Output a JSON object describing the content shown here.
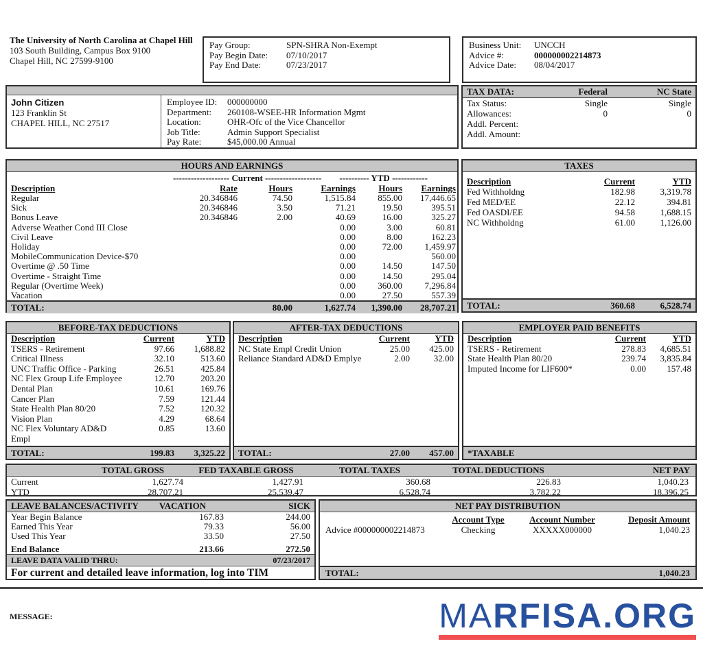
{
  "employer": {
    "name": "The University of North Carolina at Chapel Hill",
    "address1": "103 South Building, Campus Box 9100",
    "address2": "Chapel Hill, NC  27599-9100"
  },
  "pay_info": {
    "pay_group_label": "Pay Group:",
    "pay_group": "SPN-SHRA Non-Exempt",
    "pay_begin_label": "Pay Begin Date:",
    "pay_begin": "07/10/2017",
    "pay_end_label": "Pay End Date:",
    "pay_end": "07/23/2017"
  },
  "advice_info": {
    "business_unit_label": "Business Unit:",
    "business_unit": "UNCCH",
    "advice_no_label": "Advice #:",
    "advice_no": "000000002214873",
    "advice_date_label": "Advice Date:",
    "advice_date": "08/04/2017"
  },
  "employee": {
    "name": "John Citizen",
    "address1": "123 Franklin St",
    "address2": "CHAPEL HILL, NC  27517",
    "fields": [
      {
        "label": "Employee ID:",
        "value": "000000000"
      },
      {
        "label": "Department:",
        "value": "260108-WSEE-HR Information Mgmt"
      },
      {
        "label": "Location:",
        "value": "OHR-Ofc of the Vice Chancellor"
      },
      {
        "label": "Job Title:",
        "value": "Admin Support Specialist"
      },
      {
        "label": "Pay Rate:",
        "value": "$45,000.00 Annual"
      }
    ]
  },
  "tax_data": {
    "title": "TAX DATA:",
    "col_federal": "Federal",
    "col_state": "NC State",
    "rows": [
      {
        "label": "Tax Status:",
        "federal": "Single",
        "state": "Single"
      },
      {
        "label": "Allowances:",
        "federal": "0",
        "state": "0"
      },
      {
        "label": "Addl. Percent:",
        "federal": "",
        "state": ""
      },
      {
        "label": "Addl. Amount:",
        "federal": "",
        "state": ""
      }
    ]
  },
  "hours_earnings": {
    "title": "HOURS AND EARNINGS",
    "dash_a": "-------------------",
    "current_label": " Current ",
    "dash_b": "-------------------",
    "dash_c": "----------",
    "ytd_label": " YTD ",
    "dash_d": "------------",
    "headers": {
      "description": " Description",
      "rate": "Rate",
      "hours": "Hours",
      "earnings": "Earnings",
      "hours2": "Hours",
      "earnings2": "Earnings"
    },
    "rows": [
      {
        "description": "Regular",
        "rate": "20.346846",
        "cur_hours": "74.50",
        "cur_earnings": "1,515.84",
        "ytd_hours": "855.00",
        "ytd_earnings": "17,446.65"
      },
      {
        "description": "Sick",
        "rate": "20.346846",
        "cur_hours": "3.50",
        "cur_earnings": "71.21",
        "ytd_hours": "19.50",
        "ytd_earnings": "395.51"
      },
      {
        "description": "Bonus Leave",
        "rate": "20.346846",
        "cur_hours": "2.00",
        "cur_earnings": "40.69",
        "ytd_hours": "16.00",
        "ytd_earnings": "325.27"
      },
      {
        "description": "Adverse Weather Cond III Close",
        "rate": "",
        "cur_hours": "",
        "cur_earnings": "0.00",
        "ytd_hours": "3.00",
        "ytd_earnings": "60.81"
      },
      {
        "description": "Civil Leave",
        "rate": "",
        "cur_hours": "",
        "cur_earnings": "0.00",
        "ytd_hours": "8.00",
        "ytd_earnings": "162.23"
      },
      {
        "description": "Holiday",
        "rate": "",
        "cur_hours": "",
        "cur_earnings": "0.00",
        "ytd_hours": "72.00",
        "ytd_earnings": "1,459.97"
      },
      {
        "description": "MobileCommunication Device-$70",
        "rate": "",
        "cur_hours": "",
        "cur_earnings": "0.00",
        "ytd_hours": "",
        "ytd_earnings": "560.00"
      },
      {
        "description": "Overtime @ .50 Time",
        "rate": "",
        "cur_hours": "",
        "cur_earnings": "0.00",
        "ytd_hours": "14.50",
        "ytd_earnings": "147.50"
      },
      {
        "description": "Overtime - Straight Time",
        "rate": "",
        "cur_hours": "",
        "cur_earnings": "0.00",
        "ytd_hours": "14.50",
        "ytd_earnings": "295.04"
      },
      {
        "description": "Regular (Overtime Week)",
        "rate": "",
        "cur_hours": "",
        "cur_earnings": "0.00",
        "ytd_hours": "360.00",
        "ytd_earnings": "7,296.84"
      },
      {
        "description": "Vacation",
        "rate": "",
        "cur_hours": "",
        "cur_earnings": "0.00",
        "ytd_hours": "27.50",
        "ytd_earnings": "557.39"
      }
    ],
    "total": {
      "label": "TOTAL:",
      "cur_hours": "80.00",
      "cur_earnings": "1,627.74",
      "ytd_hours": "1,390.00",
      "ytd_earnings": "28,707.21"
    }
  },
  "taxes": {
    "title": "TAXES",
    "headers": {
      "description": " Description",
      "current": "Current",
      "ytd": "YTD"
    },
    "rows": [
      {
        "description": "Fed Withholdng",
        "current": "182.98",
        "ytd": "3,319.78"
      },
      {
        "description": "Fed MED/EE",
        "current": "22.12",
        "ytd": "394.81"
      },
      {
        "description": "Fed OASDI/EE",
        "current": "94.58",
        "ytd": "1,688.15"
      },
      {
        "description": "NC Withholdng",
        "current": "61.00",
        "ytd": "1,126.00"
      }
    ],
    "total": {
      "label": "TOTAL:",
      "current": "360.68",
      "ytd": "6,528.74"
    }
  },
  "before_tax_deductions": {
    "title": "BEFORE-TAX DEDUCTIONS",
    "headers": {
      "description": "Description",
      "current": "Current",
      "ytd": "YTD"
    },
    "rows": [
      {
        "description": "TSERS - Retirement",
        "current": "97.66",
        "ytd": "1,688.82"
      },
      {
        "description": "Critical Illness",
        "current": "32.10",
        "ytd": "513.60"
      },
      {
        "description": "UNC Traffic Office - Parking",
        "current": "26.51",
        "ytd": "425.84"
      },
      {
        "description": "NC Flex Group Life Employee",
        "current": "12.70",
        "ytd": "203.20"
      },
      {
        "description": "Dental Plan",
        "current": "10.61",
        "ytd": "169.76"
      },
      {
        "description": "Cancer Plan",
        "current": "7.59",
        "ytd": "121.44"
      },
      {
        "description": "State Health Plan 80/20",
        "current": "7.52",
        "ytd": "120.32"
      },
      {
        "description": "Vision Plan",
        "current": "4.29",
        "ytd": "68.64"
      },
      {
        "description": "NC Flex Voluntary AD&D Empl",
        "current": "0.85",
        "ytd": "13.60"
      }
    ],
    "total": {
      "label": "TOTAL:",
      "current": "199.83",
      "ytd": "3,325.22"
    }
  },
  "after_tax_deductions": {
    "title": "AFTER-TAX DEDUCTIONS",
    "headers": {
      "description": "Description",
      "current": "Current",
      "ytd": "YTD"
    },
    "rows": [
      {
        "description": "NC State Empl Credit Union",
        "current": "25.00",
        "ytd": "425.00"
      },
      {
        "description": "Reliance Standard AD&D Emplye",
        "current": "2.00",
        "ytd": "32.00"
      }
    ],
    "total": {
      "label": "TOTAL:",
      "current": "27.00",
      "ytd": "457.00"
    }
  },
  "employer_paid_benefits": {
    "title": "EMPLOYER PAID BENEFITS",
    "headers": {
      "description": "Description",
      "current": "Current",
      "ytd": "YTD"
    },
    "rows": [
      {
        "description": "TSERS - Retirement",
        "current": "278.83",
        "ytd": "4,685.51"
      },
      {
        "description": "State Health Plan 80/20",
        "current": "239.74",
        "ytd": "3,835.84"
      },
      {
        "description": "Imputed Income for LIF600*",
        "current": "0.00",
        "ytd": "157.48"
      }
    ],
    "footer": "*TAXABLE"
  },
  "summary": {
    "col_headers": {
      "gross": "TOTAL GROSS",
      "fed_taxable": "FED TAXABLE GROSS",
      "taxes": "TOTAL TAXES",
      "deductions": "TOTAL DEDUCTIONS",
      "net_pay": "NET PAY"
    },
    "rows": [
      {
        "label": "Current",
        "gross": "1,627.74",
        "fed_taxable": "1,427.91",
        "taxes": "360.68",
        "deductions": "226.83",
        "net_pay": "1,040.23"
      },
      {
        "label": "YTD",
        "gross": "28,707.21",
        "fed_taxable": "25,539.47",
        "taxes": "6,528.74",
        "deductions": "3,782.22",
        "net_pay": "18,396.25"
      }
    ]
  },
  "leave": {
    "title": "LEAVE BALANCES/ACTIVITY",
    "col_vacation": "VACATION",
    "col_sick": "SICK",
    "rows": [
      {
        "label": "Year Begin Balance",
        "vacation": "167.83",
        "sick": "244.00"
      },
      {
        "label": "Earned This Year",
        "vacation": "79.33",
        "sick": "56.00"
      },
      {
        "label": "Used This Year",
        "vacation": "33.50",
        "sick": "27.50"
      }
    ],
    "end_balance": {
      "label": "End Balance",
      "vacation": "213.66",
      "sick": "272.50"
    },
    "valid_thru": {
      "label": "LEAVE DATA VALID THRU:",
      "value": "07/23/2017"
    },
    "note": "For current and detailed leave information, log into TIM"
  },
  "net_pay_distribution": {
    "title": "NET PAY DISTRIBUTION",
    "headers": {
      "account_type": "Account Type",
      "account_number": "Account Number",
      "deposit_amount": "Deposit Amount"
    },
    "rows": [
      {
        "label": "Advice #000000002214873",
        "account_type": "Checking",
        "account_number": "XXXXX000000",
        "deposit_amount": "1,040.23"
      }
    ],
    "total": {
      "label": "TOTAL:",
      "value": "1,040.23"
    }
  },
  "footer": {
    "message_label": "MESSAGE:",
    "logo_text_light": "MA",
    "logo_text_bold": "RFISA.ORG",
    "logo_color": "#27509e",
    "logo_underline_color": "#f0504f"
  }
}
